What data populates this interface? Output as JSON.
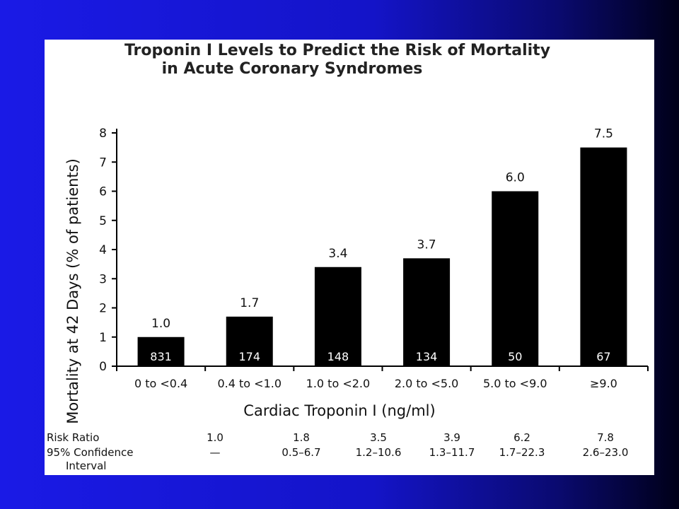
{
  "chart_data": {
    "type": "bar",
    "title": "Troponin I Levels to Predict the Risk of Mortality in Acute Coronary Syndromes",
    "title_lines": [
      "Troponin I Levels to Predict the Risk of Mortality",
      "in Acute Coronary Syndromes"
    ],
    "xlabel": "Cardiac Troponin I (ng/ml)",
    "ylabel": "Mortality at 42 Days (% of patients)",
    "ylim": [
      0,
      8
    ],
    "yticks": [
      "0",
      "1",
      "2",
      "3",
      "4",
      "5",
      "6",
      "7",
      "8"
    ],
    "categories": [
      "0 to <0.4",
      "0.4 to <1.0",
      "1.0 to <2.0",
      "2.0 to <5.0",
      "5.0 to <9.0",
      "≥9.0"
    ],
    "values": [
      1.0,
      1.7,
      3.4,
      3.7,
      6.0,
      7.5
    ],
    "value_labels": [
      "1.0",
      "1.7",
      "3.4",
      "3.7",
      "6.0",
      "7.5"
    ],
    "patient_counts": [
      "831",
      "174",
      "148",
      "134",
      "50",
      "67"
    ],
    "bar_color": "#000000",
    "grid": false
  },
  "stats_table": {
    "risk_ratio_label": "Risk Ratio",
    "risk_ratios": [
      "1.0",
      "1.8",
      "3.5",
      "3.9",
      "6.2",
      "7.8"
    ],
    "ci_label_line1": "95% Confidence",
    "ci_label_line2": "Interval",
    "confidence_intervals": [
      "—",
      "0.5–6.7",
      "1.2–10.6",
      "1.3–11.7",
      "1.7–22.3",
      "2.6–23.0"
    ]
  }
}
